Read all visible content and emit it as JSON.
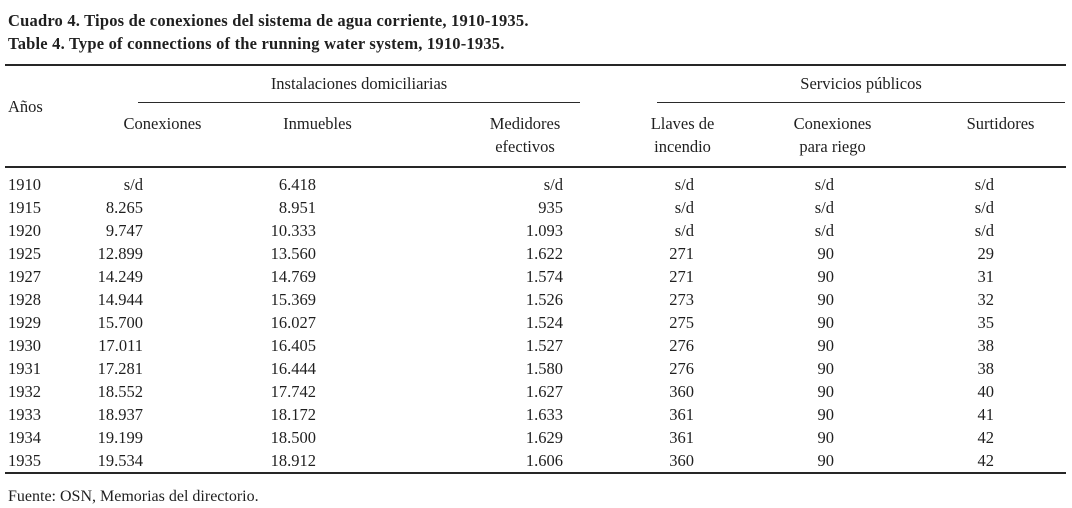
{
  "caption": {
    "line_es": "Cuadro 4. Tipos de conexiones del sistema de agua corriente, 1910-1935.",
    "line_en": "Table 4. Type of connections of the running water system, 1910-1935."
  },
  "table": {
    "year_header": "Años",
    "group1_label": "Instalaciones domiciliarias",
    "group2_label": "Servicios públicos",
    "headers": {
      "conexiones": "Conexiones",
      "inmuebles": "Inmuebles",
      "medidores_line1": "Medidores",
      "medidores_line2": "efectivos",
      "llaves_line1": "Llaves de",
      "llaves_line2": "incendio",
      "riego_line1": "Conexiones",
      "riego_line2": "para riego",
      "surtidores": "Surtidores"
    },
    "rows": [
      {
        "year": "1910",
        "conexiones": "s/d",
        "inmuebles": "6.418",
        "medidores": "s/d",
        "llaves": "s/d",
        "riego": "s/d",
        "surtidores": "s/d"
      },
      {
        "year": "1915",
        "conexiones": "8.265",
        "inmuebles": "8.951",
        "medidores": "935",
        "llaves": "s/d",
        "riego": "s/d",
        "surtidores": "s/d"
      },
      {
        "year": "1920",
        "conexiones": "9.747",
        "inmuebles": "10.333",
        "medidores": "1.093",
        "llaves": "s/d",
        "riego": "s/d",
        "surtidores": "s/d"
      },
      {
        "year": "1925",
        "conexiones": "12.899",
        "inmuebles": "13.560",
        "medidores": "1.622",
        "llaves": "271",
        "riego": "90",
        "surtidores": "29"
      },
      {
        "year": "1927",
        "conexiones": "14.249",
        "inmuebles": "14.769",
        "medidores": "1.574",
        "llaves": "271",
        "riego": "90",
        "surtidores": "31"
      },
      {
        "year": "1928",
        "conexiones": "14.944",
        "inmuebles": "15.369",
        "medidores": "1.526",
        "llaves": "273",
        "riego": "90",
        "surtidores": "32"
      },
      {
        "year": "1929",
        "conexiones": "15.700",
        "inmuebles": "16.027",
        "medidores": "1.524",
        "llaves": "275",
        "riego": "90",
        "surtidores": "35"
      },
      {
        "year": "1930",
        "conexiones": "17.011",
        "inmuebles": "16.405",
        "medidores": "1.527",
        "llaves": "276",
        "riego": "90",
        "surtidores": "38"
      },
      {
        "year": "1931",
        "conexiones": "17.281",
        "inmuebles": "16.444",
        "medidores": "1.580",
        "llaves": "276",
        "riego": "90",
        "surtidores": "38"
      },
      {
        "year": "1932",
        "conexiones": "18.552",
        "inmuebles": "17.742",
        "medidores": "1.627",
        "llaves": "360",
        "riego": "90",
        "surtidores": "40"
      },
      {
        "year": "1933",
        "conexiones": "18.937",
        "inmuebles": "18.172",
        "medidores": "1.633",
        "llaves": "361",
        "riego": "90",
        "surtidores": "41"
      },
      {
        "year": "1934",
        "conexiones": "19.199",
        "inmuebles": "18.500",
        "medidores": "1.629",
        "llaves": "361",
        "riego": "90",
        "surtidores": "42"
      },
      {
        "year": "1935",
        "conexiones": "19.534",
        "inmuebles": "18.912",
        "medidores": "1.606",
        "llaves": "360",
        "riego": "90",
        "surtidores": "42"
      }
    ]
  },
  "footer": {
    "source": "Fuente: OSN, Memorias del directorio."
  }
}
